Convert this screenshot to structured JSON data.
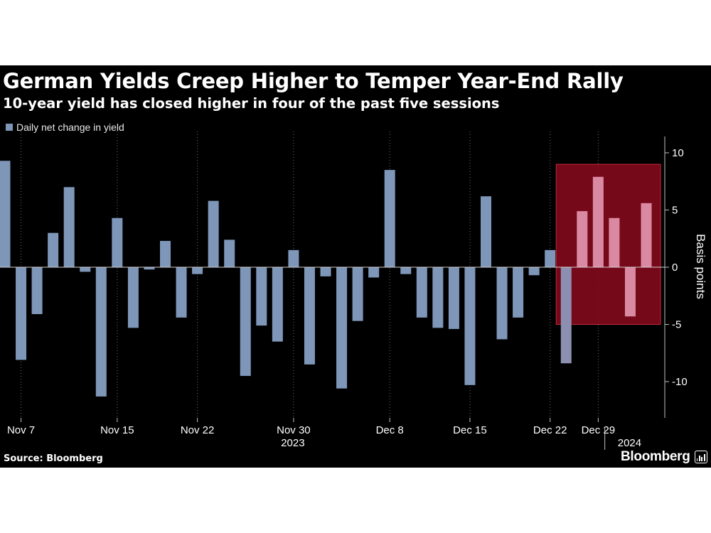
{
  "header": {
    "title": "German Yields Creep Higher to Temper Year-End Rally",
    "subtitle": "10-year yield has closed higher in four of the past five sessions"
  },
  "footer": {
    "source": "Source: Bloomberg",
    "brand": "Bloomberg"
  },
  "colors": {
    "background": "#000000",
    "bar": "#7e96b8",
    "highlight_fill": "#8b0a1d",
    "highlight_border": "#c0283c",
    "highlight_bar": "#d98aa2",
    "text": "#ffffff"
  },
  "icons": {
    "brand": "bloomberg-chart-icon"
  },
  "chart_data": {
    "type": "bar",
    "legend": "Daily net change in yield",
    "legend_position": "top-left",
    "ylabel": "Basis points",
    "ylim": [
      -13,
      11
    ],
    "yticks": [
      10,
      5,
      0,
      -5,
      -10
    ],
    "y_axis_side": "right",
    "grid": "dotted vertical at month-day labels",
    "xtick_labels": [
      "Nov 7",
      "Nov 15",
      "Nov 22",
      "Nov 30",
      "Dec 8",
      "Dec 15",
      "Dec 22",
      "Dec 29"
    ],
    "xtick_index": [
      1,
      7,
      12,
      18,
      24,
      29,
      34,
      37
    ],
    "year_labels": [
      {
        "label": "2023",
        "index": 18
      },
      {
        "label": "2024",
        "index": 39
      }
    ],
    "values": [
      9.3,
      -8.1,
      -4.1,
      3.0,
      7.0,
      -0.4,
      -11.3,
      4.3,
      -5.3,
      -0.2,
      2.3,
      -4.4,
      -0.6,
      5.8,
      2.4,
      -9.5,
      -5.1,
      -6.5,
      1.5,
      -8.5,
      -0.8,
      -10.6,
      -4.7,
      -0.9,
      8.5,
      -0.6,
      -4.4,
      -5.3,
      -5.4,
      -10.3,
      6.2,
      -6.3,
      -4.4,
      -0.7,
      1.5,
      -8.4,
      4.9,
      7.9,
      4.3,
      -4.3,
      5.6
    ],
    "highlight": {
      "start_index": 35,
      "end_index": 40,
      "y_range": [
        -5,
        9
      ]
    }
  }
}
